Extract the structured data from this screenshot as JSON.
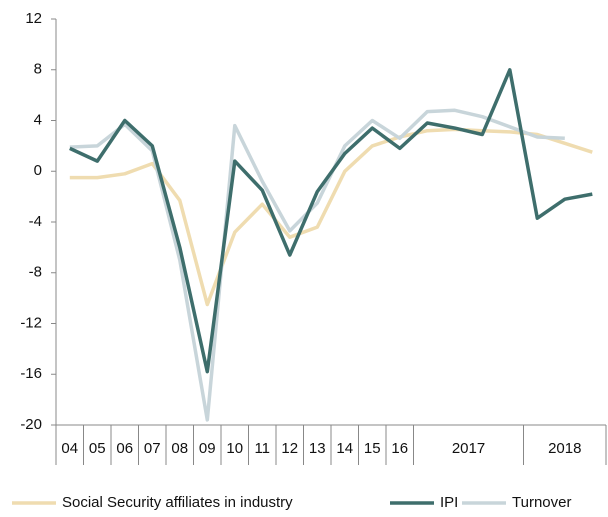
{
  "chart_data": {
    "type": "line",
    "categories": [
      "04",
      "05",
      "06",
      "07",
      "08",
      "09",
      "10",
      "11",
      "12",
      "13",
      "14",
      "15",
      "16",
      "2017",
      null,
      null,
      null,
      "2018",
      null,
      null
    ],
    "series": [
      {
        "name": "Social Security affiliates in industry",
        "color": "#efdcb0",
        "values": [
          -0.5,
          -0.5,
          -0.2,
          0.6,
          -2.3,
          -10.5,
          -4.8,
          -2.6,
          -5.2,
          -4.4,
          0.0,
          2.0,
          2.7,
          3.2,
          3.3,
          3.2,
          3.1,
          2.9,
          2.2,
          1.5
        ]
      },
      {
        "name": "IPI",
        "color": "#3e6e6c",
        "values": [
          1.8,
          0.8,
          4.0,
          2.0,
          -6.0,
          -15.8,
          0.8,
          -1.5,
          -6.6,
          -1.6,
          1.4,
          3.4,
          1.8,
          3.8,
          3.4,
          2.9,
          8.0,
          -3.7,
          -2.2,
          -1.8
        ]
      },
      {
        "name": "Turnover",
        "color": "#c8d5da",
        "values": [
          1.9,
          2.0,
          3.7,
          1.6,
          -7.0,
          -19.6,
          3.6,
          -0.8,
          -4.7,
          -2.5,
          2.0,
          4.0,
          2.6,
          4.7,
          4.8,
          4.3,
          3.5,
          2.7,
          2.6,
          null
        ]
      }
    ],
    "ylim": [
      -20,
      12
    ],
    "yticks": [
      -20,
      -16,
      -12,
      -8,
      -4,
      0,
      4,
      8,
      12
    ],
    "legend": "bottom"
  }
}
